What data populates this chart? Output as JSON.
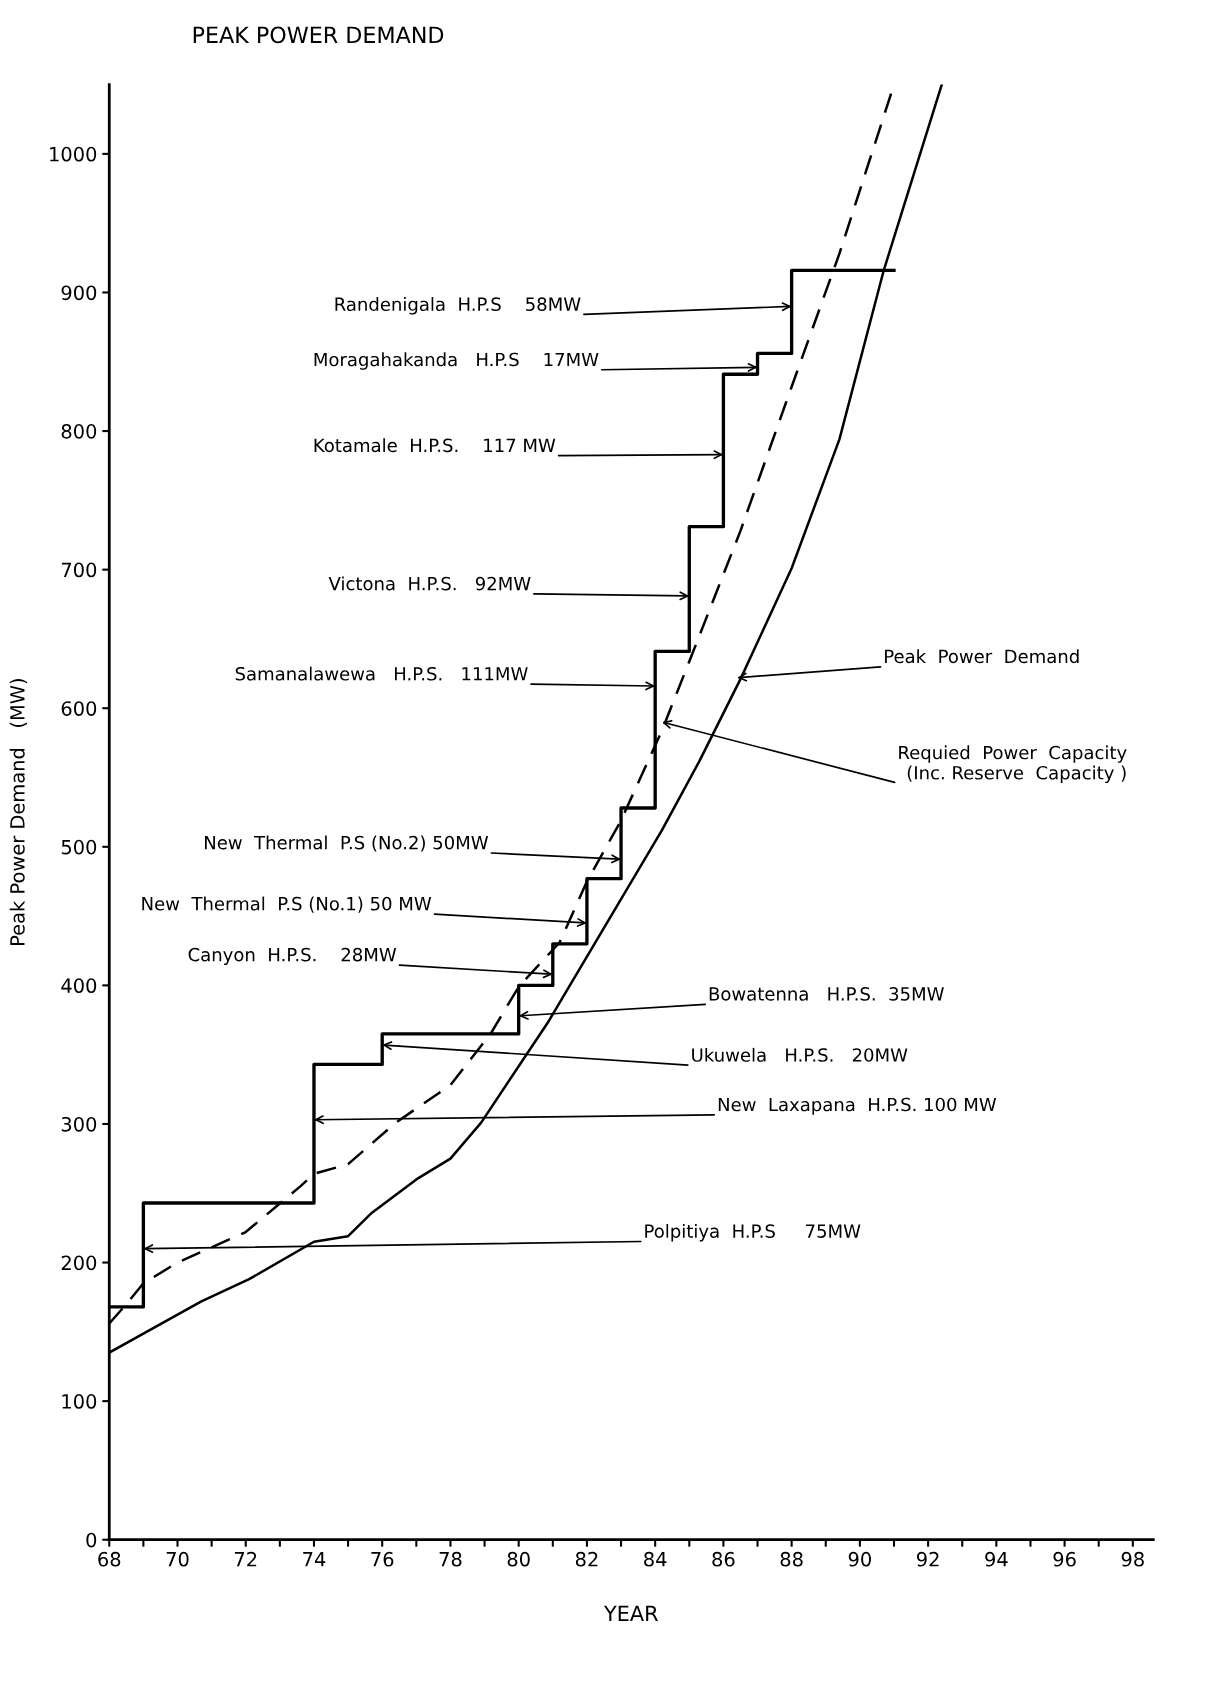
{
  "chart_data": {
    "type": "line",
    "title": "PEAK POWER DEMAND",
    "xlabel": "YEAR",
    "ylabel": "Peak Power Demand   (MW)",
    "xlim": [
      68,
      98.6
    ],
    "ylim": [
      0,
      1050
    ],
    "xticks": [
      68,
      {
        "value": 69,
        "label": null
      },
      70,
      {
        "value": 71,
        "label": null
      },
      72,
      {
        "value": 73,
        "label": null
      },
      74,
      {
        "value": 75,
        "label": null
      },
      76,
      {
        "value": 77,
        "label": null
      },
      78,
      {
        "value": 79,
        "label": null
      },
      80,
      {
        "value": 81,
        "label": null
      },
      82,
      {
        "value": 83,
        "label": null
      },
      84,
      {
        "value": 85,
        "label": null
      },
      86,
      {
        "value": 87,
        "label": null
      },
      88,
      {
        "value": 89,
        "label": null
      },
      90,
      {
        "value": 91,
        "label": null
      },
      92,
      {
        "value": 93,
        "label": null
      },
      94,
      {
        "value": 95,
        "label": null
      },
      96,
      {
        "value": 97,
        "label": null
      },
      98
    ],
    "yticks": [
      0,
      100,
      200,
      300,
      400,
      500,
      600,
      700,
      800,
      900,
      1000
    ],
    "grid": false,
    "legend": false,
    "marker": "none",
    "series": [
      {
        "type": "step",
        "color": "#000000",
        "line_style": "solid",
        "x": [
          68,
          69,
          74,
          76,
          80,
          81,
          82,
          83,
          84,
          85,
          86,
          87,
          88,
          91
        ],
        "values": [
          168,
          243,
          343,
          365,
          400,
          430,
          477,
          528,
          641,
          731,
          841,
          856,
          916,
          916
        ]
      },
      {
        "color": "#000000",
        "line_style": "dashed",
        "x": [
          68.0,
          68.5,
          69.0,
          70.0,
          72.0,
          73.6,
          74.0,
          75.0,
          76.4,
          78.0,
          79.2,
          80.0,
          81.2,
          82.0,
          83.0,
          84.2,
          85.1,
          86.5,
          88.0,
          89.4,
          91.0
        ],
        "values": [
          156,
          170,
          185,
          200,
          222,
          255,
          264,
          271,
          301,
          328,
          366,
          399,
          431,
          475,
          519,
          584,
          640,
          728,
          832,
          928,
          1050
        ]
      },
      {
        "color": "#000000",
        "line_style": "solid",
        "x": [
          68.0,
          70.7,
          72.1,
          74.0,
          75.0,
          75.7,
          77.0,
          78.0,
          78.9,
          80.85,
          82.8,
          84.2,
          85.3,
          86.5,
          88.0,
          89.4,
          90.7,
          92.4
        ],
        "values": [
          135,
          172,
          188,
          215,
          219,
          236,
          260,
          275,
          301,
          373,
          454,
          512,
          562,
          621,
          701,
          794,
          916,
          1050
        ]
      }
    ],
    "annotations": [
      {
        "text": "Randenigala  H.P.S    58MW",
        "x": 88,
        "y": 890
      },
      {
        "text": "Moragahakanda   H.P.S    17MW",
        "x": 87,
        "y": 846
      },
      {
        "text": "Kotamale  H.P.S.    117 MW",
        "x": 86,
        "y": 783
      },
      {
        "text": "Victona  H.P.S.   92MW",
        "x": 85,
        "y": 681
      },
      {
        "text": "Samanalawewa   H.P.S.   111MW",
        "x": 84,
        "y": 616
      },
      {
        "text": "New  Thermal  P.S (No.2) 50MW",
        "x": 83,
        "y": 491
      },
      {
        "text": "New  Thermal  P.S (No.1) 50 MW",
        "x": 82,
        "y": 445
      },
      {
        "text": "Canyon  H.P.S.    28MW",
        "x": 81,
        "y": 408
      },
      {
        "text": "Bowatenna   H.P.S.  35MW",
        "x": 80,
        "y": 378
      },
      {
        "text": "Ukuwela   H.P.S.   20MW",
        "x": 76,
        "y": 357
      },
      {
        "text": "New  Laxapana  H.P.S. 100 MW",
        "x": 74,
        "y": 303
      },
      {
        "text": "Polpitiya  H.P.S     75MW",
        "x": 69,
        "y": 210
      },
      {
        "text": "Peak  Power  Demand",
        "x": 86.4,
        "y": 622
      },
      {
        "text": "Requied  Power  Capacity\n(Inc. Reserve  Capacity )",
        "x": 84.2,
        "y": 590
      }
    ]
  }
}
